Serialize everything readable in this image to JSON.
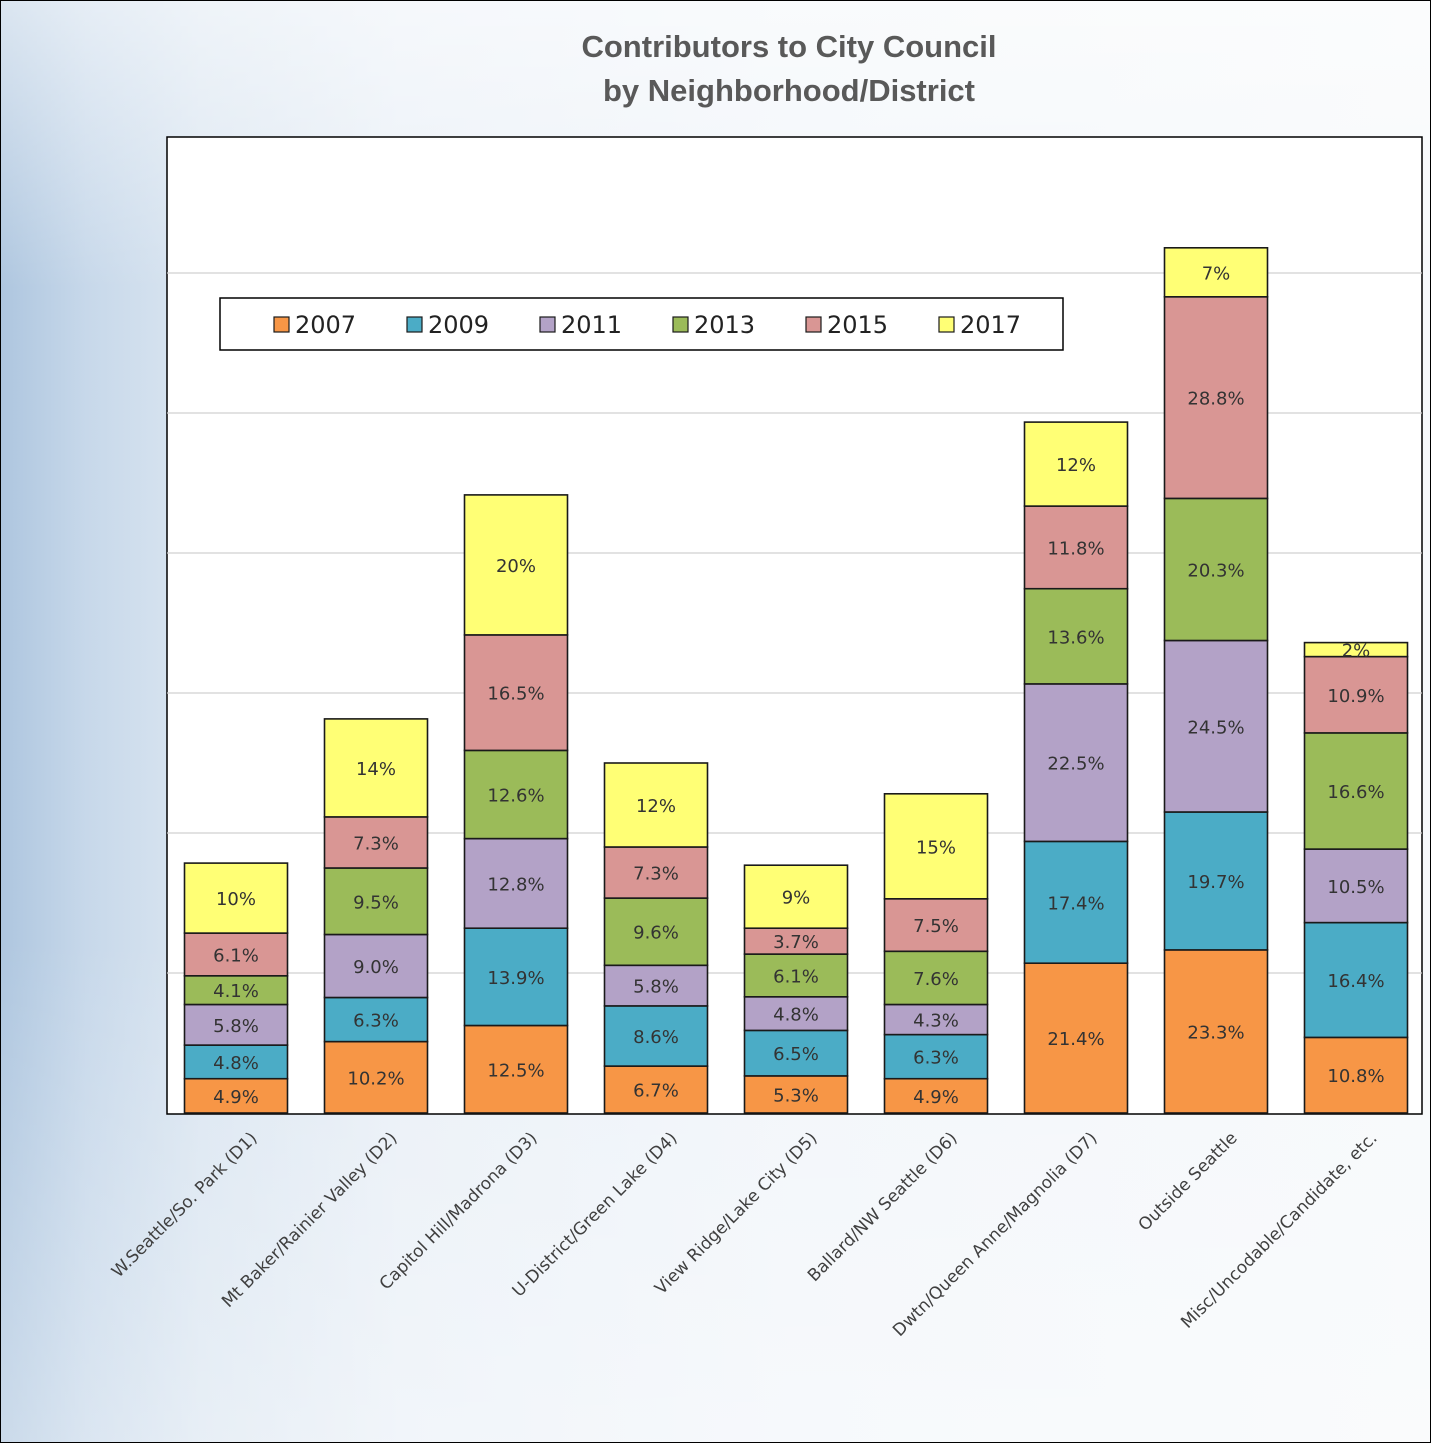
{
  "chart_data": {
    "type": "stacked-bar",
    "title": [
      "Contributors to City Council",
      "by Neighborhood/District"
    ],
    "xlabel": "",
    "ylabel": "",
    "ylim": [
      0,
      175
    ],
    "grid": true,
    "legend_position": "top-left inside plot",
    "categories": [
      "W.Seattle/So. Park (D1)",
      "Mt Baker/Rainier Valley (D2)",
      "Capitol Hill/Madrona (D3)",
      "U-District/Green Lake (D4)",
      "View Ridge/Lake City (D5)",
      "Ballard/NW Seattle (D6)",
      "Dwtn/Queen Anne/Magnolia (D7)",
      "Outside Seattle",
      "Misc/Uncodable/Candidate, etc."
    ],
    "series": [
      {
        "name": "2007",
        "color": "#f79646",
        "values": [
          4.9,
          10.2,
          12.5,
          6.7,
          5.3,
          4.9,
          21.4,
          23.3,
          10.8
        ],
        "labels": [
          "4.9%",
          "10.2%",
          "12.5%",
          "6.7%",
          "5.3%",
          "4.9%",
          "21.4%",
          "23.3%",
          "10.8%"
        ]
      },
      {
        "name": "2009",
        "color": "#4bacc6",
        "values": [
          4.8,
          6.3,
          13.9,
          8.6,
          6.5,
          6.3,
          17.4,
          19.7,
          16.4
        ],
        "labels": [
          "4.8%",
          "6.3%",
          "13.9%",
          "8.6%",
          "6.5%",
          "6.3%",
          "17.4%",
          "19.7%",
          "16.4%"
        ]
      },
      {
        "name": "2011",
        "color": "#b3a2c7",
        "values": [
          5.8,
          9.0,
          12.8,
          5.8,
          4.8,
          4.3,
          22.5,
          24.5,
          10.5
        ],
        "labels": [
          "5.8%",
          "9.0%",
          "12.8%",
          "5.8%",
          "4.8%",
          "4.3%",
          "22.5%",
          "24.5%",
          "10.5%"
        ]
      },
      {
        "name": "2013",
        "color": "#9bbb59",
        "values": [
          4.1,
          9.5,
          12.6,
          9.6,
          6.1,
          7.6,
          13.6,
          20.3,
          16.6
        ],
        "labels": [
          "4.1%",
          "9.5%",
          "12.6%",
          "9.6%",
          "6.1%",
          "7.6%",
          "13.6%",
          "20.3%",
          "16.6%"
        ]
      },
      {
        "name": "2015",
        "color": "#d99694",
        "values": [
          6.1,
          7.3,
          16.5,
          7.3,
          3.7,
          7.5,
          11.8,
          28.8,
          10.9
        ],
        "labels": [
          "6.1%",
          "7.3%",
          "16.5%",
          "7.3%",
          "3.7%",
          "7.5%",
          "11.8%",
          "28.8%",
          "10.9%"
        ]
      },
      {
        "name": "2017",
        "color": "#ffff75",
        "values": [
          10,
          14,
          20,
          12,
          9,
          15,
          12,
          7,
          2
        ],
        "labels": [
          "10%",
          "14%",
          "20%",
          "12%",
          "9%",
          "15%",
          "12%",
          "7%",
          "2%"
        ]
      }
    ]
  }
}
